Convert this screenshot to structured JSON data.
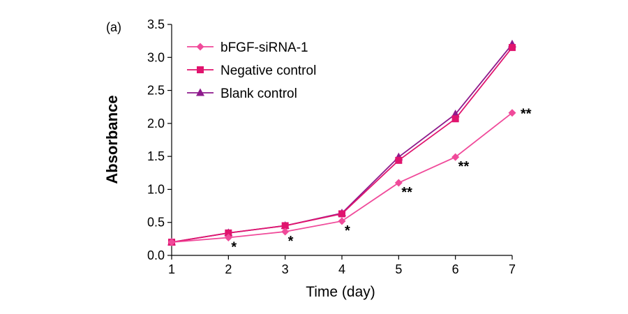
{
  "panel_label": "(a)",
  "chart_data": {
    "type": "line",
    "xlabel": "Time (day)",
    "ylabel": "Absorbance",
    "x": [
      1,
      2,
      3,
      4,
      5,
      6,
      7
    ],
    "xlim": [
      1,
      7
    ],
    "ylim": [
      0,
      3.5
    ],
    "x_ticks": [
      "1",
      "2",
      "3",
      "4",
      "5",
      "6",
      "7"
    ],
    "y_ticks": [
      "0.0",
      "0.5",
      "1.0",
      "1.5",
      "2.0",
      "2.5",
      "3.0",
      "3.5"
    ],
    "grid": false,
    "legend_position": "top-left",
    "series": [
      {
        "name": "bFGF-siRNA-1",
        "color": "#f04a9a",
        "marker": "diamond",
        "values": [
          0.2,
          0.27,
          0.36,
          0.52,
          1.1,
          1.49,
          2.16
        ]
      },
      {
        "name": "Negative control",
        "color": "#e0146e",
        "marker": "square",
        "values": [
          0.2,
          0.34,
          0.45,
          0.63,
          1.44,
          2.07,
          3.15
        ]
      },
      {
        "name": "Blank control",
        "color": "#8e1a8c",
        "marker": "triangle",
        "values": [
          0.2,
          0.34,
          0.45,
          0.64,
          1.49,
          2.14,
          3.2
        ]
      }
    ],
    "annotations": [
      {
        "x": 2,
        "y": 0.27,
        "text": "*"
      },
      {
        "x": 3,
        "y": 0.36,
        "text": "*"
      },
      {
        "x": 4,
        "y": 0.52,
        "text": "*"
      },
      {
        "x": 5,
        "y": 1.1,
        "text": "**"
      },
      {
        "x": 6,
        "y": 1.49,
        "text": "**"
      },
      {
        "x": 7,
        "y": 2.16,
        "text": "**"
      }
    ]
  }
}
